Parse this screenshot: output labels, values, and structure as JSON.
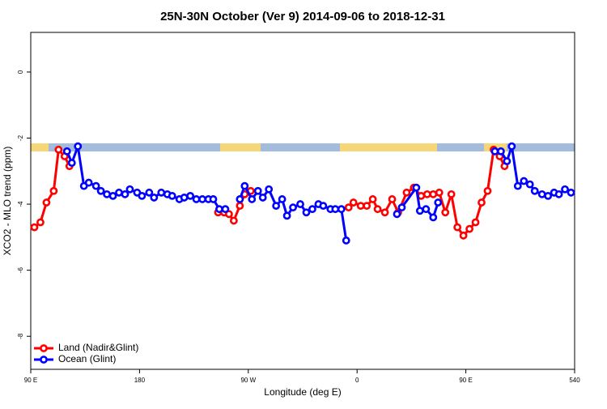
{
  "chart_data": {
    "type": "line",
    "title": "25N-30N October (Ver 9)   2014-09-06 to 2018-12-31",
    "xlabel": "Longitude (deg E)",
    "ylabel": "XCO2 - MLO trend (ppm)",
    "xlim": [
      90,
      540
    ],
    "xticks": [
      {
        "value": 90,
        "label": "90 E"
      },
      180,
      {
        "value": 270,
        "label": "90 W"
      },
      {
        "value": 360,
        "label": "0"
      },
      {
        "value": 450,
        "label": "90 E"
      },
      540
    ],
    "ylim": [
      -9,
      1.2
    ],
    "yticks": [
      0,
      -2,
      -4,
      -6,
      -8
    ],
    "legend": "bottom-left",
    "series": [
      {
        "name": "Land (Nadir&Glint)",
        "color": "#ff0000",
        "x": [
          93,
          98,
          103,
          109,
          113,
          118,
          122,
          180,
          245,
          250,
          254,
          258,
          263,
          267,
          272,
          310,
          353,
          357,
          363,
          368,
          373,
          377,
          383,
          389,
          394,
          401,
          407,
          413,
          418,
          423,
          428,
          433,
          438,
          443,
          448,
          453,
          458,
          463,
          468,
          473,
          478,
          482
        ],
        "values": [
          -4.7,
          -4.55,
          -3.95,
          -3.6,
          -2.35,
          -2.55,
          -2.85,
          null,
          -4.25,
          -4.25,
          -4.3,
          -4.5,
          -4.05,
          -3.7,
          -3.6,
          null,
          -4.1,
          -3.95,
          -4.05,
          -4.05,
          -3.85,
          -4.15,
          -4.25,
          -3.85,
          -4.25,
          -3.65,
          -3.5,
          -3.75,
          -3.7,
          -3.7,
          -3.65,
          -4.25,
          -3.7,
          -4.7,
          -4.95,
          -4.75,
          -4.55,
          -3.95,
          -3.6,
          -2.35,
          -2.55,
          -2.85
        ]
      },
      {
        "name": "Ocean (Glint)",
        "color": "#0000ff",
        "x": [
          120,
          124,
          129,
          134,
          138,
          144,
          148,
          153,
          158,
          163,
          168,
          172,
          178,
          182,
          188,
          192,
          198,
          203,
          207,
          213,
          217,
          222,
          227,
          232,
          237,
          241,
          246,
          251,
          257,
          263,
          267,
          273,
          278,
          282,
          287,
          293,
          298,
          302,
          307,
          313,
          318,
          323,
          328,
          332,
          338,
          342,
          347,
          351,
          370,
          393,
          397,
          409,
          412,
          417,
          423,
          427,
          450,
          474,
          479,
          484,
          488,
          493,
          498,
          503,
          507,
          513,
          518,
          523,
          527,
          532,
          537
        ],
        "values": [
          -2.4,
          -2.75,
          -2.25,
          -3.45,
          -3.35,
          -3.45,
          -3.6,
          -3.7,
          -3.75,
          -3.65,
          -3.7,
          -3.55,
          -3.65,
          -3.75,
          -3.65,
          -3.8,
          -3.65,
          -3.7,
          -3.75,
          -3.85,
          -3.8,
          -3.75,
          -3.85,
          -3.85,
          -3.85,
          -3.85,
          -4.15,
          -4.15,
          null,
          -3.85,
          -3.45,
          -3.85,
          -3.6,
          -3.8,
          -3.55,
          -4.05,
          -3.85,
          -4.35,
          -4.1,
          -4.0,
          -4.25,
          -4.15,
          -4.0,
          -4.05,
          -4.15,
          -4.15,
          -4.15,
          -5.1,
          null,
          -4.3,
          -4.1,
          -3.5,
          -4.2,
          -4.15,
          -4.4,
          -3.95,
          null,
          -2.4,
          -2.4,
          -2.7,
          -2.25,
          -3.45,
          -3.3,
          -3.4,
          -3.6,
          -3.7,
          -3.75,
          -3.65,
          -3.7,
          -3.55,
          -3.65
        ]
      }
    ]
  }
}
